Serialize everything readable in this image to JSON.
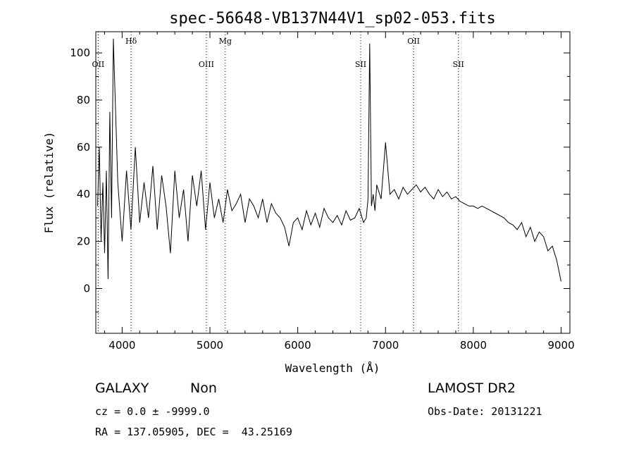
{
  "chart_data": {
    "type": "line",
    "title": "spec-56648-VB137N44V1_sp02-053.fits",
    "xlabel": "Wavelength (Å)",
    "ylabel": "Flux (relative)",
    "xlim": [
      3700,
      9100
    ],
    "ylim": [
      -19,
      109
    ],
    "xticks": [
      4000,
      5000,
      6000,
      7000,
      8000,
      9000
    ],
    "yticks": [
      0,
      20,
      40,
      60,
      80,
      100
    ],
    "grid": false,
    "line_markers": [
      {
        "label": "OII",
        "x": 3727
      },
      {
        "label": "Hδ",
        "x": 4102
      },
      {
        "label": "OIII",
        "x": 4959
      },
      {
        "label": "Mg",
        "x": 5175
      },
      {
        "label": "SII",
        "x": 6717
      },
      {
        "label": "OII",
        "x": 7320
      },
      {
        "label": "SII",
        "x": 7830
      }
    ],
    "series": [
      {
        "x": [
          3720,
          3740,
          3760,
          3780,
          3800,
          3820,
          3840,
          3860,
          3880,
          3900,
          3950,
          4000,
          4050,
          4100,
          4150,
          4200,
          4250,
          4300,
          4350,
          4400,
          4450,
          4500,
          4550,
          4600,
          4650,
          4700,
          4750,
          4800,
          4850,
          4900,
          4950,
          5000,
          5050,
          5100,
          5150,
          5200,
          5250,
          5300,
          5350,
          5400,
          5450,
          5500,
          5550,
          5600,
          5650,
          5700,
          5750,
          5800,
          5850,
          5900,
          5950,
          6000,
          6050,
          6100,
          6150,
          6200,
          6250,
          6300,
          6350,
          6400,
          6450,
          6500,
          6550,
          6600,
          6650,
          6700,
          6750,
          6780,
          6800,
          6820,
          6840,
          6860,
          6880,
          6900,
          6950,
          7000,
          7050,
          7100,
          7150,
          7200,
          7250,
          7300,
          7350,
          7400,
          7450,
          7500,
          7550,
          7600,
          7650,
          7700,
          7750,
          7800,
          7850,
          7900,
          7950,
          8000,
          8050,
          8100,
          8150,
          8200,
          8250,
          8300,
          8350,
          8400,
          8450,
          8500,
          8550,
          8600,
          8650,
          8700,
          8750,
          8800,
          8850,
          8900,
          8950,
          9000
        ],
        "y": [
          35,
          60,
          20,
          45,
          15,
          50,
          4,
          75,
          30,
          106,
          45,
          20,
          50,
          25,
          60,
          28,
          45,
          30,
          52,
          25,
          48,
          35,
          15,
          50,
          30,
          42,
          20,
          48,
          35,
          50,
          25,
          45,
          30,
          38,
          28,
          42,
          33,
          36,
          40,
          28,
          38,
          35,
          30,
          38,
          28,
          36,
          32,
          30,
          26,
          18,
          28,
          30,
          25,
          33,
          27,
          32,
          26,
          34,
          30,
          28,
          31,
          27,
          33,
          29,
          30,
          34,
          28,
          30,
          38,
          104,
          35,
          40,
          33,
          44,
          38,
          62,
          40,
          42,
          38,
          43,
          40,
          42,
          44,
          41,
          43,
          40,
          38,
          42,
          39,
          41,
          38,
          39,
          37,
          36,
          35,
          35,
          34,
          35,
          34,
          33,
          32,
          31,
          30,
          28,
          27,
          25,
          28,
          22,
          26,
          20,
          24,
          22,
          16,
          18,
          12,
          3
        ]
      }
    ]
  },
  "info": {
    "object_type": "GALAXY",
    "subclass": "Non",
    "survey": "LAMOST DR2",
    "cz": "cz = 0.0 ± -9999.0",
    "obs_date": "Obs-Date: 20131221",
    "radec": "RA = 137.05905, DEC =  43.25169"
  }
}
